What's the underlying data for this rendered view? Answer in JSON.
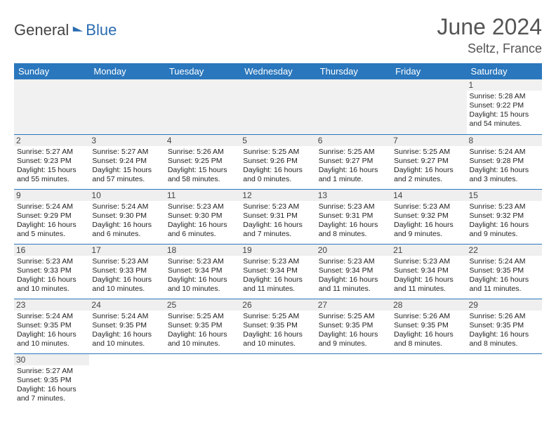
{
  "brand": {
    "general": "General",
    "blue": "Blue",
    "accent": "#2a6cb0"
  },
  "title": {
    "month": "June 2024",
    "location": "Seltz, France"
  },
  "colors": {
    "header_bg": "#2a77bd",
    "header_fg": "#ffffff",
    "daynum_bg": "#efefef",
    "rule": "#2a77bd",
    "text": "#222222"
  },
  "weekdays": [
    "Sunday",
    "Monday",
    "Tuesday",
    "Wednesday",
    "Thursday",
    "Friday",
    "Saturday"
  ],
  "days": {
    "1": {
      "sunrise": "Sunrise: 5:28 AM",
      "sunset": "Sunset: 9:22 PM",
      "daylight": "Daylight: 15 hours and 54 minutes."
    },
    "2": {
      "sunrise": "Sunrise: 5:27 AM",
      "sunset": "Sunset: 9:23 PM",
      "daylight": "Daylight: 15 hours and 55 minutes."
    },
    "3": {
      "sunrise": "Sunrise: 5:27 AM",
      "sunset": "Sunset: 9:24 PM",
      "daylight": "Daylight: 15 hours and 57 minutes."
    },
    "4": {
      "sunrise": "Sunrise: 5:26 AM",
      "sunset": "Sunset: 9:25 PM",
      "daylight": "Daylight: 15 hours and 58 minutes."
    },
    "5": {
      "sunrise": "Sunrise: 5:25 AM",
      "sunset": "Sunset: 9:26 PM",
      "daylight": "Daylight: 16 hours and 0 minutes."
    },
    "6": {
      "sunrise": "Sunrise: 5:25 AM",
      "sunset": "Sunset: 9:27 PM",
      "daylight": "Daylight: 16 hours and 1 minute."
    },
    "7": {
      "sunrise": "Sunrise: 5:25 AM",
      "sunset": "Sunset: 9:27 PM",
      "daylight": "Daylight: 16 hours and 2 minutes."
    },
    "8": {
      "sunrise": "Sunrise: 5:24 AM",
      "sunset": "Sunset: 9:28 PM",
      "daylight": "Daylight: 16 hours and 3 minutes."
    },
    "9": {
      "sunrise": "Sunrise: 5:24 AM",
      "sunset": "Sunset: 9:29 PM",
      "daylight": "Daylight: 16 hours and 5 minutes."
    },
    "10": {
      "sunrise": "Sunrise: 5:24 AM",
      "sunset": "Sunset: 9:30 PM",
      "daylight": "Daylight: 16 hours and 6 minutes."
    },
    "11": {
      "sunrise": "Sunrise: 5:23 AM",
      "sunset": "Sunset: 9:30 PM",
      "daylight": "Daylight: 16 hours and 6 minutes."
    },
    "12": {
      "sunrise": "Sunrise: 5:23 AM",
      "sunset": "Sunset: 9:31 PM",
      "daylight": "Daylight: 16 hours and 7 minutes."
    },
    "13": {
      "sunrise": "Sunrise: 5:23 AM",
      "sunset": "Sunset: 9:31 PM",
      "daylight": "Daylight: 16 hours and 8 minutes."
    },
    "14": {
      "sunrise": "Sunrise: 5:23 AM",
      "sunset": "Sunset: 9:32 PM",
      "daylight": "Daylight: 16 hours and 9 minutes."
    },
    "15": {
      "sunrise": "Sunrise: 5:23 AM",
      "sunset": "Sunset: 9:32 PM",
      "daylight": "Daylight: 16 hours and 9 minutes."
    },
    "16": {
      "sunrise": "Sunrise: 5:23 AM",
      "sunset": "Sunset: 9:33 PM",
      "daylight": "Daylight: 16 hours and 10 minutes."
    },
    "17": {
      "sunrise": "Sunrise: 5:23 AM",
      "sunset": "Sunset: 9:33 PM",
      "daylight": "Daylight: 16 hours and 10 minutes."
    },
    "18": {
      "sunrise": "Sunrise: 5:23 AM",
      "sunset": "Sunset: 9:34 PM",
      "daylight": "Daylight: 16 hours and 10 minutes."
    },
    "19": {
      "sunrise": "Sunrise: 5:23 AM",
      "sunset": "Sunset: 9:34 PM",
      "daylight": "Daylight: 16 hours and 11 minutes."
    },
    "20": {
      "sunrise": "Sunrise: 5:23 AM",
      "sunset": "Sunset: 9:34 PM",
      "daylight": "Daylight: 16 hours and 11 minutes."
    },
    "21": {
      "sunrise": "Sunrise: 5:23 AM",
      "sunset": "Sunset: 9:34 PM",
      "daylight": "Daylight: 16 hours and 11 minutes."
    },
    "22": {
      "sunrise": "Sunrise: 5:24 AM",
      "sunset": "Sunset: 9:35 PM",
      "daylight": "Daylight: 16 hours and 11 minutes."
    },
    "23": {
      "sunrise": "Sunrise: 5:24 AM",
      "sunset": "Sunset: 9:35 PM",
      "daylight": "Daylight: 16 hours and 10 minutes."
    },
    "24": {
      "sunrise": "Sunrise: 5:24 AM",
      "sunset": "Sunset: 9:35 PM",
      "daylight": "Daylight: 16 hours and 10 minutes."
    },
    "25": {
      "sunrise": "Sunrise: 5:25 AM",
      "sunset": "Sunset: 9:35 PM",
      "daylight": "Daylight: 16 hours and 10 minutes."
    },
    "26": {
      "sunrise": "Sunrise: 5:25 AM",
      "sunset": "Sunset: 9:35 PM",
      "daylight": "Daylight: 16 hours and 10 minutes."
    },
    "27": {
      "sunrise": "Sunrise: 5:25 AM",
      "sunset": "Sunset: 9:35 PM",
      "daylight": "Daylight: 16 hours and 9 minutes."
    },
    "28": {
      "sunrise": "Sunrise: 5:26 AM",
      "sunset": "Sunset: 9:35 PM",
      "daylight": "Daylight: 16 hours and 8 minutes."
    },
    "29": {
      "sunrise": "Sunrise: 5:26 AM",
      "sunset": "Sunset: 9:35 PM",
      "daylight": "Daylight: 16 hours and 8 minutes."
    },
    "30": {
      "sunrise": "Sunrise: 5:27 AM",
      "sunset": "Sunset: 9:35 PM",
      "daylight": "Daylight: 16 hours and 7 minutes."
    }
  },
  "layout": {
    "blank_leading": 6,
    "total_days": 30
  }
}
